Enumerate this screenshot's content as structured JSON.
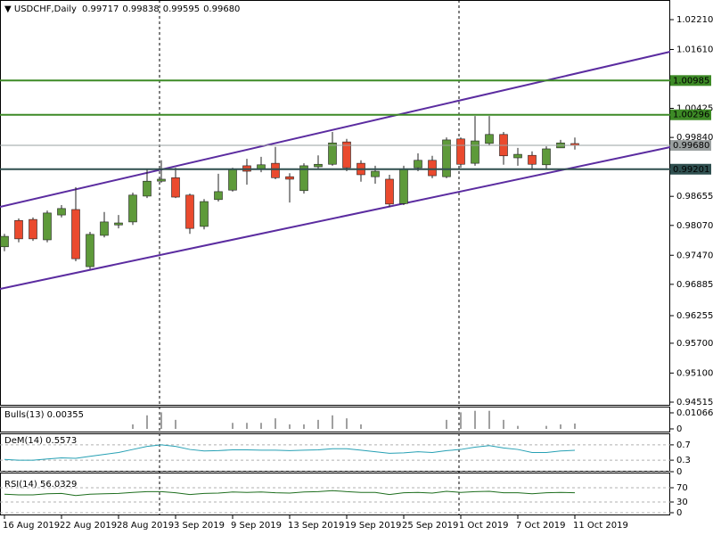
{
  "chart_data": [
    {
      "type": "candlestick",
      "title": "USDCHF,Daily",
      "ohlc_labels": [
        "0.99717",
        "0.99838",
        "0.99595",
        "0.99680"
      ],
      "categories": [
        "16 Aug 2019",
        null,
        null,
        null,
        "22 Aug 2019",
        null,
        null,
        null,
        "28 Aug 2019",
        null,
        null,
        null,
        "3 Sep 2019",
        null,
        null,
        null,
        "9 Sep 2019",
        null,
        null,
        null,
        "13 Sep 2019",
        null,
        null,
        null,
        "19 Sep 2019",
        null,
        null,
        null,
        "25 Sep 2019",
        null,
        null,
        null,
        "1 Oct 2019",
        null,
        null,
        null,
        "7 Oct 2019",
        null,
        null,
        null,
        "11 Oct 2019"
      ],
      "open": [
        0.9764,
        0.9817,
        0.9819,
        0.9778,
        0.9828,
        0.9839,
        0.9724,
        0.9787,
        0.9808,
        0.9814,
        0.9866,
        0.9896,
        0.9903,
        0.9868,
        0.9805,
        0.9859,
        0.9878,
        0.9927,
        0.992,
        0.9932,
        0.9905,
        0.9877,
        0.9925,
        0.993,
        0.9975,
        0.9932,
        0.9905,
        0.99,
        0.9851,
        0.9923,
        0.9938,
        0.9905,
        0.9981,
        0.9932,
        0.9972,
        0.999,
        0.9943,
        0.9948,
        0.9929,
        0.9963,
        0.99717
      ],
      "high": [
        0.979,
        0.9821,
        0.9823,
        0.9837,
        0.9848,
        0.9884,
        0.9794,
        0.9834,
        0.9828,
        0.9873,
        0.992,
        0.9938,
        0.9923,
        0.9871,
        0.986,
        0.9911,
        0.9923,
        0.9941,
        0.9945,
        0.9965,
        0.9912,
        0.9932,
        0.9948,
        0.9995,
        0.9981,
        0.9938,
        0.9927,
        0.9909,
        0.9927,
        0.9952,
        0.9947,
        0.9984,
        0.9984,
        1.0027,
        1.0027,
        0.9995,
        0.9963,
        0.9956,
        0.9966,
        0.9979,
        0.99838
      ],
      "low": [
        0.9755,
        0.9773,
        0.9776,
        0.9773,
        0.9823,
        0.9735,
        0.9719,
        0.9783,
        0.9801,
        0.9808,
        0.9862,
        0.9893,
        0.9862,
        0.979,
        0.9799,
        0.9855,
        0.9875,
        0.9889,
        0.9914,
        0.99,
        0.9853,
        0.9871,
        0.9921,
        0.9927,
        0.9916,
        0.9895,
        0.9891,
        0.9844,
        0.9848,
        0.9916,
        0.9902,
        0.9902,
        0.9923,
        0.9927,
        0.9968,
        0.9929,
        0.9927,
        0.992,
        0.992,
        0.9963,
        0.99595
      ],
      "close": [
        0.9785,
        0.978,
        0.978,
        0.9832,
        0.9841,
        0.974,
        0.9789,
        0.9814,
        0.9812,
        0.9868,
        0.9896,
        0.99,
        0.9864,
        0.9801,
        0.9855,
        0.9875,
        0.992,
        0.9916,
        0.9929,
        0.9903,
        0.99,
        0.9927,
        0.993,
        0.9973,
        0.9923,
        0.9909,
        0.9916,
        0.985,
        0.9921,
        0.9938,
        0.9907,
        0.9979,
        0.993,
        0.9977,
        0.999,
        0.9947,
        0.995,
        0.993,
        0.9961,
        0.9973,
        0.9968
      ],
      "up_color": "#5e9a3a",
      "down_color": "#ea4a2e",
      "ylim": [
        0.94443,
        1.02605
      ],
      "yticks": [
        {
          "value": 1.0221,
          "label": "1.02210"
        },
        {
          "value": 1.0161,
          "label": "1.01610"
        },
        {
          "value": 1.00425,
          "label": "1.00425"
        },
        {
          "value": 0.9984,
          "label": "0.99840"
        },
        {
          "value": 0.98655,
          "label": "0.98655"
        },
        {
          "value": 0.9807,
          "label": "0.98070"
        },
        {
          "value": 0.9747,
          "label": "0.97470"
        },
        {
          "value": 0.96885,
          "label": "0.96885"
        },
        {
          "value": 0.96255,
          "label": "0.96255"
        },
        {
          "value": 0.957,
          "label": "0.95700"
        },
        {
          "value": 0.951,
          "label": "0.95100"
        },
        {
          "value": 0.94515,
          "label": "0.94515"
        }
      ],
      "levels": [
        {
          "value": 1.00985,
          "label": "1.00985",
          "color": "#3d8a26"
        },
        {
          "value": 1.00296,
          "label": "1.00296",
          "color": "#3d8a26"
        },
        {
          "value": 0.99201,
          "label": "0.99201",
          "color": "#2f4f4f"
        },
        {
          "value": 0.9968,
          "label": "0.99680",
          "color": "#9aa0a0"
        }
      ]
    },
    {
      "type": "bar",
      "title": "Bulls(13) 0.00355",
      "color": "#a0a0a0",
      "ylim": [
        0,
        0.0142
      ],
      "yticks": [
        0,
        {
          "value": 0.01066,
          "label": "0.01066"
        }
      ],
      "values": [
        null,
        null,
        null,
        null,
        null,
        null,
        null,
        null,
        null,
        0.003,
        0.009,
        0.011,
        0.006,
        null,
        null,
        null,
        0.004,
        0.004,
        0.004,
        0.007,
        0.003,
        0.003,
        0.006,
        0.009,
        0.007,
        0.003,
        null,
        null,
        null,
        null,
        null,
        0.006,
        0.011,
        0.012,
        0.012,
        0.006,
        0.002,
        null,
        0.002,
        0.003,
        0.00355
      ]
    },
    {
      "type": "line",
      "title": "DeM(14) 0.5573",
      "color": "#26a0b4",
      "ylim": [
        0,
        1
      ],
      "yticks": [
        0,
        0.3,
        0.7
      ],
      "values": [
        0.32,
        0.3,
        0.3,
        0.33,
        0.36,
        0.35,
        0.4,
        0.45,
        0.5,
        0.58,
        0.66,
        0.7,
        0.66,
        0.58,
        0.54,
        0.55,
        0.57,
        0.57,
        0.56,
        0.56,
        0.55,
        0.56,
        0.57,
        0.6,
        0.6,
        0.56,
        0.52,
        0.48,
        0.49,
        0.52,
        0.5,
        0.55,
        0.58,
        0.64,
        0.68,
        0.62,
        0.58,
        0.5,
        0.5,
        0.54,
        0.5573
      ]
    },
    {
      "type": "line",
      "title": "RSI(14) 56.0329",
      "color": "#1e6e1e",
      "ylim": [
        0,
        100
      ],
      "yticks": [
        0,
        30,
        70
      ],
      "values": [
        52,
        50,
        50,
        53,
        54,
        48,
        52,
        53,
        54,
        57,
        59,
        59,
        56,
        51,
        54,
        55,
        58,
        57,
        58,
        56,
        55,
        58,
        59,
        62,
        59,
        57,
        57,
        51,
        56,
        57,
        55,
        60,
        57,
        59,
        60,
        56,
        56,
        53,
        56,
        57,
        56.0329
      ]
    }
  ]
}
